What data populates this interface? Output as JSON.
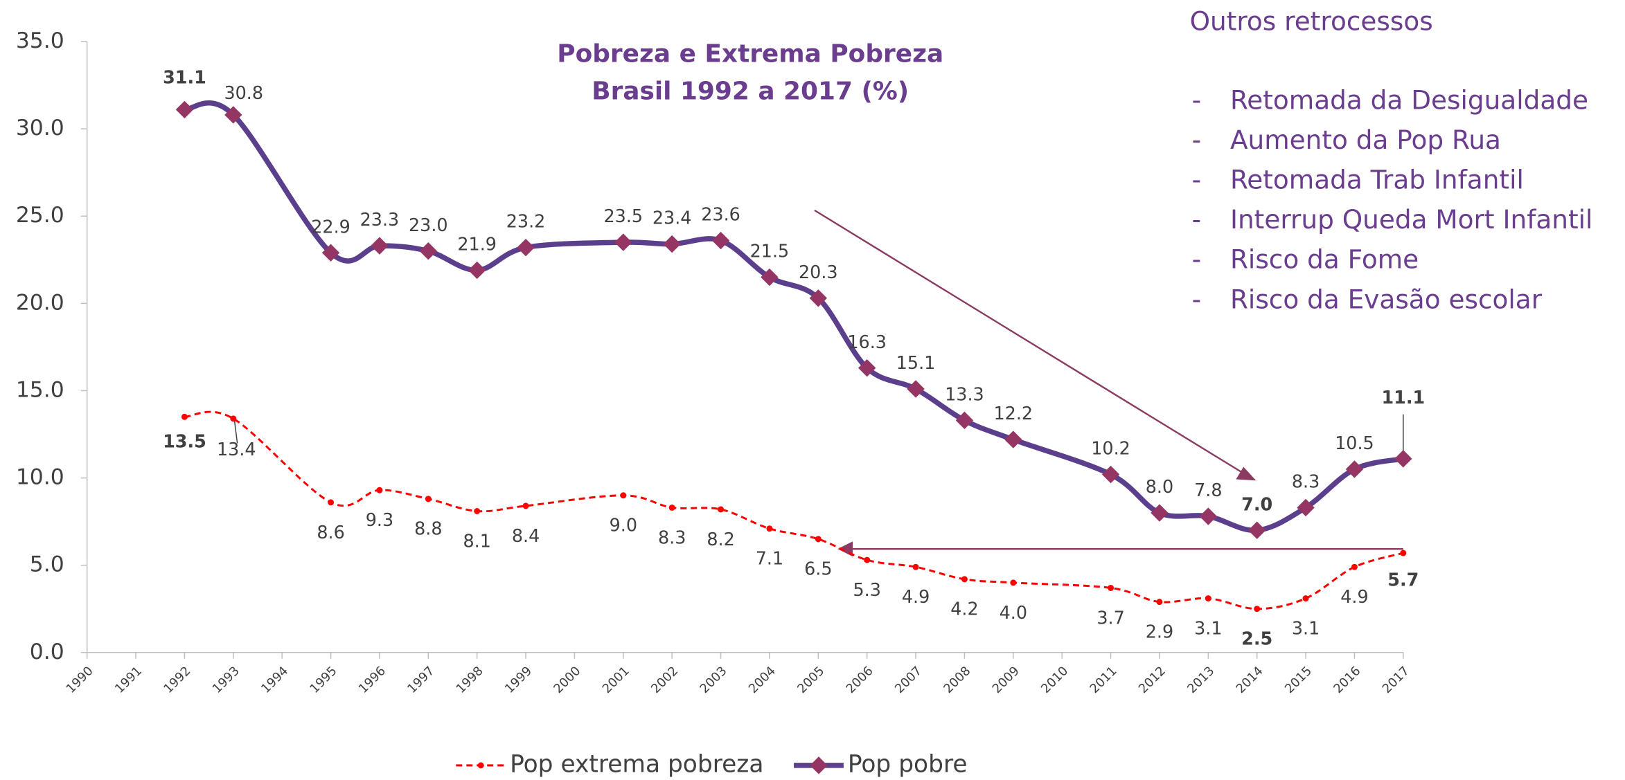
{
  "chart_data": {
    "type": "line",
    "title": "Pobreza e Extrema Pobreza",
    "subtitle": "Brasil 1992 a 2017 (%)",
    "x": [
      1992,
      1993,
      1995,
      1996,
      1997,
      1998,
      1999,
      2001,
      2002,
      2003,
      2004,
      2005,
      2006,
      2007,
      2008,
      2009,
      2011,
      2012,
      2013,
      2014,
      2015,
      2016,
      2017
    ],
    "xlim": [
      1990,
      2017
    ],
    "xticks": [
      1990,
      1991,
      1992,
      1993,
      1994,
      1995,
      1996,
      1997,
      1998,
      1999,
      2000,
      2001,
      2002,
      2003,
      2004,
      2005,
      2006,
      2007,
      2008,
      2009,
      2010,
      2011,
      2012,
      2013,
      2014,
      2015,
      2016,
      2017
    ],
    "ylim": [
      0,
      35
    ],
    "yticks": [
      {
        "value": 0,
        "label": "0.0"
      },
      {
        "value": 5,
        "label": "5.0"
      },
      {
        "value": 10,
        "label": "10.0"
      },
      {
        "value": 15,
        "label": "15.0"
      },
      {
        "value": 20,
        "label": "20.0"
      },
      {
        "value": 25,
        "label": "25.0"
      },
      {
        "value": 30,
        "label": "30.0"
      },
      {
        "value": 35,
        "label": "35.0"
      }
    ],
    "series": [
      {
        "name": "Pop extrema pobreza",
        "color": "#ff0000",
        "style": "dashed",
        "values": [
          13.5,
          13.4,
          8.6,
          9.3,
          8.8,
          8.1,
          8.4,
          9.0,
          8.3,
          8.2,
          7.1,
          6.5,
          5.3,
          4.9,
          4.2,
          4.0,
          3.7,
          2.9,
          3.1,
          2.5,
          3.1,
          4.9,
          5.7
        ],
        "value_labels": [
          "13.5",
          "13.4",
          "8.6",
          "9.3",
          "8.8",
          "8.1",
          "8.4",
          "9.0",
          "8.3",
          "8.2",
          "7.1",
          "6.5",
          "5.3",
          "4.9",
          "4.2",
          "4.0",
          "3.7",
          "2.9",
          "3.1",
          "2.5",
          "3.1",
          "4.9",
          "5.7"
        ]
      },
      {
        "name": "Pop pobre",
        "color": "#5b3f8c",
        "marker_color": "#943563",
        "style": "solid",
        "values": [
          31.1,
          30.8,
          22.9,
          23.3,
          23.0,
          21.9,
          23.2,
          23.5,
          23.4,
          23.6,
          21.5,
          20.3,
          16.3,
          15.1,
          13.3,
          12.2,
          10.2,
          8.0,
          7.8,
          7.0,
          8.3,
          10.5,
          11.1
        ],
        "value_labels": [
          "31.1",
          "30.8",
          "22.9",
          "23.3",
          "23.0",
          "21.9",
          "23.2",
          "23.5",
          "23.4",
          "23.6",
          "21.5",
          "20.3",
          "16.3",
          "15.1",
          "13.3",
          "12.2",
          "10.2",
          "8.0",
          "7.8",
          "7.0",
          "8.3",
          "10.5",
          "11.1"
        ]
      }
    ],
    "annotation_title": "Outros retrocessos",
    "annotation_items": [
      "Retomada da Desigualdade",
      "Aumento da Pop Rua",
      "Retomada  Trab Infantil",
      "Interrup Queda Mort Infantil",
      "Risco da Fome",
      "Risco da Evasão escolar"
    ],
    "annotation_bullet": "-"
  }
}
